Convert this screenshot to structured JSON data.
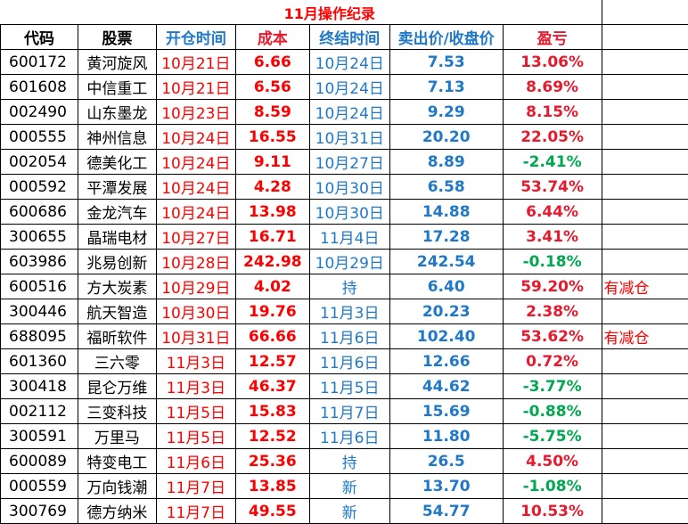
{
  "title": "11月操作纪录",
  "headers": {
    "code": "代码",
    "stock": "股票",
    "open_time": "开仓时间",
    "cost": "成本",
    "close_time": "终结时间",
    "sell_price": "卖出价/收盘价",
    "profit": "盈亏"
  },
  "rows": [
    {
      "code": "600172",
      "name": "黄河旋风",
      "open": "10月21日",
      "cost": "6.66",
      "close": "10月24日",
      "sell": "7.53",
      "pl": "13.06%",
      "sign": "pos",
      "note": ""
    },
    {
      "code": "601608",
      "name": "中信重工",
      "open": "10月21日",
      "cost": "6.56",
      "close": "10月24日",
      "sell": "7.13",
      "pl": "8.69%",
      "sign": "pos",
      "note": ""
    },
    {
      "code": "002490",
      "name": "山东墨龙",
      "open": "10月23日",
      "cost": "8.59",
      "close": "10月24日",
      "sell": "9.29",
      "pl": "8.15%",
      "sign": "pos",
      "note": ""
    },
    {
      "code": "000555",
      "name": "神州信息",
      "open": "10月24日",
      "cost": "16.55",
      "close": "10月31日",
      "sell": "20.20",
      "pl": "22.05%",
      "sign": "pos",
      "note": ""
    },
    {
      "code": "002054",
      "name": "德美化工",
      "open": "10月24日",
      "cost": "9.11",
      "close": "10月27日",
      "sell": "8.89",
      "pl": "-2.41%",
      "sign": "neg",
      "note": ""
    },
    {
      "code": "000592",
      "name": "平潭发展",
      "open": "10月24日",
      "cost": "4.28",
      "close": "10月30日",
      "sell": "6.58",
      "pl": "53.74%",
      "sign": "pos",
      "note": ""
    },
    {
      "code": "600686",
      "name": "金龙汽车",
      "open": "10月24日",
      "cost": "13.98",
      "close": "10月30日",
      "sell": "14.88",
      "pl": "6.44%",
      "sign": "pos",
      "note": ""
    },
    {
      "code": "300655",
      "name": "晶瑞电材",
      "open": "10月27日",
      "cost": "16.71",
      "close": "11月4日",
      "sell": "17.28",
      "pl": "3.41%",
      "sign": "pos",
      "note": ""
    },
    {
      "code": "603986",
      "name": "兆易创新",
      "open": "10月28日",
      "cost": "242.98",
      "close": "10月29日",
      "sell": "242.54",
      "pl": "-0.18%",
      "sign": "neg",
      "note": ""
    },
    {
      "code": "600516",
      "name": "方大炭素",
      "open": "10月29日",
      "cost": "4.02",
      "close": "持",
      "sell": "6.40",
      "pl": "59.20%",
      "sign": "pos",
      "note": "有减仓"
    },
    {
      "code": "300446",
      "name": "航天智造",
      "open": "10月30日",
      "cost": "19.76",
      "close": "11月3日",
      "sell": "20.23",
      "pl": "2.38%",
      "sign": "pos",
      "note": ""
    },
    {
      "code": "688095",
      "name": "福昕软件",
      "open": "10月31日",
      "cost": "66.66",
      "close": "11月6日",
      "sell": "102.40",
      "pl": "53.62%",
      "sign": "pos",
      "note": "有减仓"
    },
    {
      "code": "601360",
      "name": "三六零",
      "open": "11月3日",
      "cost": "12.57",
      "close": "11月6日",
      "sell": "12.66",
      "pl": "0.72%",
      "sign": "pos",
      "note": ""
    },
    {
      "code": "300418",
      "name": "昆仑万维",
      "open": "11月3日",
      "cost": "46.37",
      "close": "11月5日",
      "sell": "44.62",
      "pl": "-3.77%",
      "sign": "neg",
      "note": ""
    },
    {
      "code": "002112",
      "name": "三变科技",
      "open": "11月5日",
      "cost": "15.83",
      "close": "11月7日",
      "sell": "15.69",
      "pl": "-0.88%",
      "sign": "neg",
      "note": ""
    },
    {
      "code": "300591",
      "name": "万里马",
      "open": "11月5日",
      "cost": "12.52",
      "close": "11月6日",
      "sell": "11.80",
      "pl": "-5.75%",
      "sign": "neg",
      "note": ""
    },
    {
      "code": "600089",
      "name": "特变电工",
      "open": "11月6日",
      "cost": "25.36",
      "close": "持",
      "sell": "26.5",
      "pl": "4.50%",
      "sign": "pos",
      "note": ""
    },
    {
      "code": "000559",
      "name": "万向钱潮",
      "open": "11月7日",
      "cost": "13.85",
      "close": "新",
      "sell": "13.70",
      "pl": "-1.08%",
      "sign": "neg",
      "note": ""
    },
    {
      "code": "300769",
      "name": "德方纳米",
      "open": "11月7日",
      "cost": "49.55",
      "close": "新",
      "sell": "54.77",
      "pl": "10.53%",
      "sign": "pos",
      "note": ""
    }
  ]
}
